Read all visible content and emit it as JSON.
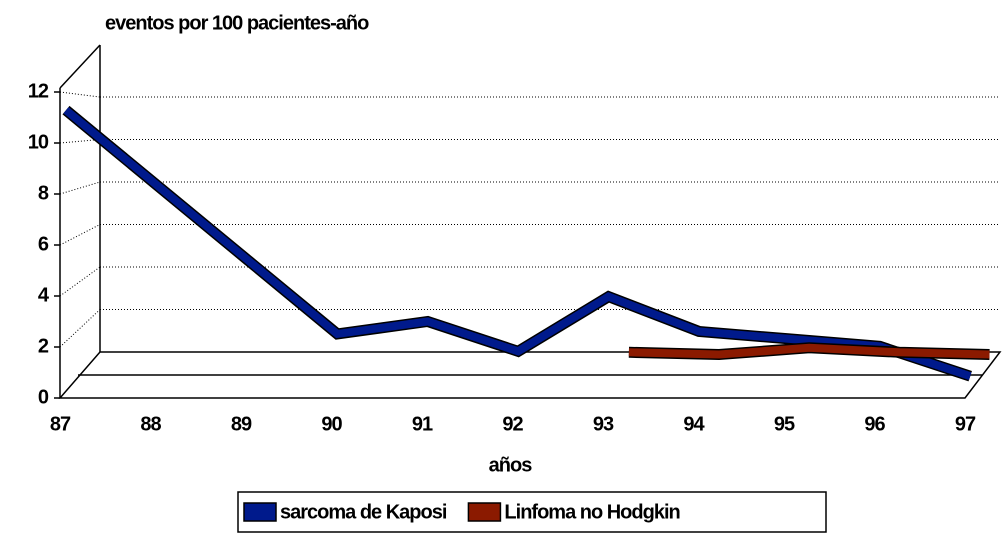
{
  "chart_data": {
    "type": "line",
    "title": "eventos por 100 pacientes-año",
    "x_label": "años",
    "categories": [
      "87",
      "88",
      "89",
      "90",
      "91",
      "92",
      "93",
      "94",
      "95",
      "96",
      "97"
    ],
    "series": [
      {
        "name": "sarcoma de Kaposi",
        "color": "#001a8c",
        "values": [
          11.3,
          8.3,
          5.3,
          2.3,
          2.8,
          1.6,
          3.8,
          2.4,
          2.1,
          1.8,
          0.6
        ]
      },
      {
        "name": "Linfoma no Hodgkin",
        "color": "#8b1a00",
        "values": [
          null,
          null,
          null,
          null,
          null,
          null,
          0.6,
          0.5,
          0.8,
          0.6,
          0.5
        ]
      }
    ],
    "ylim": [
      0,
      12
    ],
    "yticks": [
      0,
      2,
      4,
      6,
      8,
      10,
      12
    ],
    "grid": true
  }
}
